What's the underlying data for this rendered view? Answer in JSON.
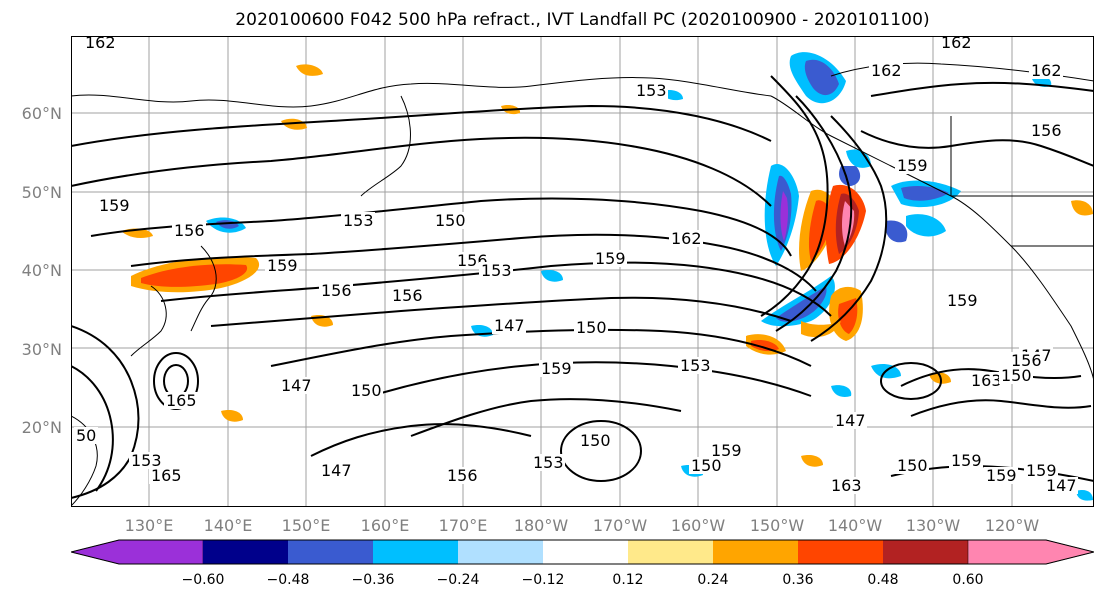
{
  "title": "2020100600 F042 500 hPa refract., IVT Landfall PC (2020100900 - 2020101100)",
  "lat_labels": [
    "60°N",
    "50°N",
    "40°N",
    "30°N",
    "20°N"
  ],
  "lon_labels": [
    "130°E",
    "140°E",
    "150°E",
    "160°E",
    "170°E",
    "180°W",
    "170°W",
    "160°W",
    "150°W",
    "140°W",
    "130°W",
    "120°W"
  ],
  "contour_labels": [
    "162",
    "162",
    "162",
    "162",
    "159",
    "159",
    "159",
    "159",
    "159",
    "159",
    "159",
    "159",
    "159",
    "159",
    "156",
    "156",
    "156",
    "156",
    "156",
    "156",
    "153",
    "153",
    "153",
    "153",
    "153",
    "150",
    "150",
    "150",
    "150",
    "150",
    "150",
    "147",
    "147",
    "147",
    "147",
    "147",
    "165",
    "165",
    "156",
    "163",
    "163",
    "162",
    "50",
    "153",
    "150",
    "147"
  ],
  "colorbar": {
    "tick_labels": [
      "−0.60",
      "−0.48",
      "−0.36",
      "−0.24",
      "−0.12",
      "0.12",
      "0.24",
      "0.36",
      "0.48",
      "0.60"
    ],
    "colors": [
      "#9b30d9",
      "#00008b",
      "#3a5bd0",
      "#00bfff",
      "#b0e0ff",
      "#ffffff",
      "#ffe98a",
      "#ffa500",
      "#ff4500",
      "#b22222",
      "#ff85b0"
    ],
    "extend": "both"
  },
  "map_style": {
    "contour_color": "#000000",
    "grid_color": "#a0a0a0",
    "coast_color": "#000000"
  }
}
